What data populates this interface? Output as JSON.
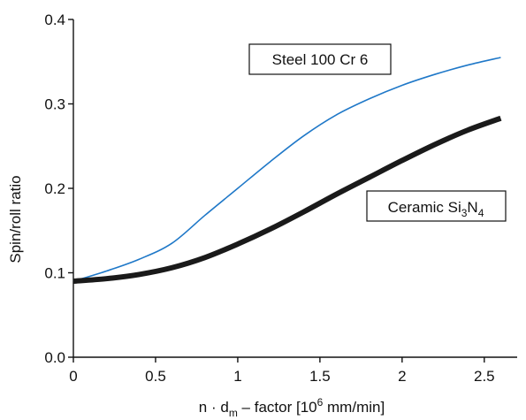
{
  "chart_data": {
    "type": "line",
    "title": "",
    "xlabel_parts": {
      "prefix": "n · d",
      "subscript": "m",
      "middle": " – factor [10",
      "superscript": "6",
      "suffix": " mm/min]"
    },
    "ylabel": "Spin/roll ratio",
    "xlim": [
      0,
      2.7
    ],
    "ylim": [
      0.0,
      0.4
    ],
    "xticks": [
      "0",
      "0.5",
      "1",
      "1.5",
      "2",
      "2.5"
    ],
    "xtick_values": [
      0,
      0.5,
      1,
      1.5,
      2,
      2.5
    ],
    "yticks": [
      "0.0",
      "0.1",
      "0.2",
      "0.3",
      "0.4"
    ],
    "ytick_values": [
      0.0,
      0.1,
      0.2,
      0.3,
      0.4
    ],
    "grid": false,
    "series": [
      {
        "name": "Steel 100 Cr 6",
        "color": "#1f78c8",
        "style": "thin",
        "x": [
          0,
          0.2,
          0.4,
          0.6,
          0.8,
          1.0,
          1.2,
          1.4,
          1.6,
          1.8,
          2.0,
          2.2,
          2.4,
          2.6
        ],
        "y": [
          0.09,
          0.102,
          0.116,
          0.135,
          0.168,
          0.2,
          0.232,
          0.262,
          0.287,
          0.306,
          0.322,
          0.335,
          0.346,
          0.355
        ]
      },
      {
        "name_parts": {
          "prefix": "Ceramic Si",
          "sub1": "3",
          "middle": "N",
          "sub2": "4"
        },
        "color": "#1a1a1a",
        "style": "thick",
        "x": [
          0,
          0.2,
          0.4,
          0.6,
          0.8,
          1.0,
          1.2,
          1.4,
          1.6,
          1.8,
          2.0,
          2.2,
          2.4,
          2.6
        ],
        "y": [
          0.09,
          0.093,
          0.098,
          0.106,
          0.118,
          0.134,
          0.152,
          0.172,
          0.193,
          0.213,
          0.233,
          0.252,
          0.269,
          0.283
        ]
      }
    ],
    "annotations": [
      {
        "label": "Steel 100 Cr 6",
        "target": "series-0"
      },
      {
        "label": "Ceramic Si3N4",
        "target": "series-1"
      }
    ]
  }
}
